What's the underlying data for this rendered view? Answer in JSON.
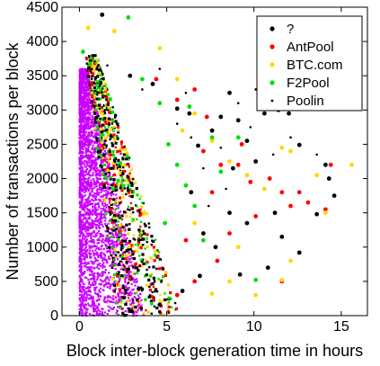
{
  "chart_data": {
    "type": "scatter",
    "title": "",
    "xlabel": "Block inter-block generation time in hours",
    "ylabel": "Number of transactions per block",
    "xlim": [
      -1,
      16.5
    ],
    "ylim": [
      0,
      4500
    ],
    "xticks": [
      0,
      5,
      10,
      15
    ],
    "yticks": [
      0,
      500,
      1000,
      1500,
      2000,
      2500,
      3000,
      3500,
      4000,
      4500
    ],
    "grid": false,
    "legend_position": "top-right",
    "series": [
      {
        "name": "?",
        "color": "#000000",
        "marker": "dot",
        "points": [
          [
            1.3,
            4390
          ],
          [
            4.2,
            3380
          ],
          [
            5.6,
            3020
          ],
          [
            6.3,
            2950
          ],
          [
            6.8,
            2480
          ],
          [
            7.6,
            2700
          ],
          [
            8.1,
            2900
          ],
          [
            8.6,
            3250
          ],
          [
            9.1,
            2850
          ],
          [
            9.6,
            2550
          ],
          [
            10.6,
            2950
          ],
          [
            11.4,
            3000
          ],
          [
            12.0,
            2950
          ],
          [
            12.6,
            2490
          ],
          [
            14.1,
            2200
          ],
          [
            14.6,
            1750
          ],
          [
            13.6,
            1480
          ],
          [
            11.6,
            1150
          ],
          [
            12.6,
            920
          ],
          [
            10.8,
            700
          ],
          [
            9.6,
            1350
          ],
          [
            8.6,
            1500
          ],
          [
            8.8,
            2150
          ],
          [
            7.1,
            1200
          ],
          [
            6.4,
            1800
          ],
          [
            6.9,
            580
          ],
          [
            4.6,
            160
          ],
          [
            3.4,
            390
          ],
          [
            5.9,
            360
          ],
          [
            7.8,
            1000
          ],
          [
            10.1,
            2250
          ],
          [
            14.3,
            2000
          ],
          [
            11.2,
            1500
          ],
          [
            9.2,
            600
          ],
          [
            2.9,
            3500
          ]
        ]
      },
      {
        "name": "AntPool",
        "color": "#ff0000",
        "marker": "dot",
        "points": [
          [
            4.4,
            3450
          ],
          [
            5.6,
            3150
          ],
          [
            6.6,
            3300
          ],
          [
            7.1,
            2400
          ],
          [
            7.6,
            1800
          ],
          [
            8.1,
            2200
          ],
          [
            9.3,
            2500
          ],
          [
            9.8,
            1950
          ],
          [
            10.9,
            2000
          ],
          [
            11.6,
            1800
          ],
          [
            12.1,
            1600
          ],
          [
            12.6,
            1800
          ],
          [
            13.1,
            1650
          ],
          [
            14.1,
            1550
          ],
          [
            14.4,
            2200
          ],
          [
            11.6,
            500
          ],
          [
            8.6,
            1200
          ],
          [
            7.9,
            800
          ],
          [
            6.6,
            500
          ],
          [
            5.6,
            300
          ],
          [
            9.1,
            2200
          ],
          [
            10.1,
            1450
          ],
          [
            7.3,
            2900
          ],
          [
            6.1,
            1100
          ]
        ]
      },
      {
        "name": "BTC.com",
        "color": "#ffd800",
        "marker": "dot",
        "points": [
          [
            0.5,
            4200
          ],
          [
            2.0,
            4150
          ],
          [
            4.6,
            3900
          ],
          [
            5.6,
            3450
          ],
          [
            6.6,
            2950
          ],
          [
            7.6,
            2550
          ],
          [
            8.6,
            2250
          ],
          [
            9.6,
            2050
          ],
          [
            10.6,
            1850
          ],
          [
            11.6,
            2450
          ],
          [
            12.1,
            2400
          ],
          [
            13.6,
            2050
          ],
          [
            15.6,
            2200
          ],
          [
            14.1,
            1500
          ],
          [
            12.1,
            800
          ],
          [
            11.6,
            520
          ],
          [
            9.1,
            1000
          ],
          [
            8.6,
            500
          ],
          [
            7.6,
            320
          ],
          [
            6.6,
            1350
          ],
          [
            5.9,
            2700
          ],
          [
            10.1,
            300
          ]
        ]
      },
      {
        "name": "F2Pool",
        "color": "#00e000",
        "marker": "dot",
        "points": [
          [
            2.8,
            4350
          ],
          [
            0.2,
            3850
          ],
          [
            3.6,
            3450
          ],
          [
            4.6,
            3100
          ],
          [
            5.1,
            2500
          ],
          [
            5.6,
            2200
          ],
          [
            6.1,
            1900
          ],
          [
            6.6,
            1600
          ],
          [
            7.1,
            1100
          ],
          [
            7.6,
            2600
          ],
          [
            8.1,
            2100
          ],
          [
            9.1,
            2600
          ],
          [
            10.1,
            520
          ],
          [
            6.3,
            3050
          ],
          [
            4.9,
            1350
          ]
        ]
      },
      {
        "name": "Poolin",
        "color": "#000000",
        "marker": "point",
        "points": [
          [
            1.6,
            3650
          ],
          [
            3.6,
            3300
          ],
          [
            4.6,
            3600
          ],
          [
            5.6,
            2800
          ],
          [
            6.1,
            3250
          ],
          [
            7.1,
            2150
          ],
          [
            8.1,
            2450
          ],
          [
            9.1,
            3100
          ],
          [
            10.1,
            3300
          ],
          [
            11.1,
            2350
          ],
          [
            12.1,
            2600
          ],
          [
            13.6,
            2350
          ],
          [
            10.6,
            3200
          ],
          [
            9.8,
            2750
          ],
          [
            8.4,
            1850
          ],
          [
            7.4,
            1600
          ],
          [
            6.4,
            2600
          ],
          [
            11.9,
            3050
          ]
        ]
      }
    ],
    "dense_cloud": {
      "color": "#cc00ff",
      "x_range": [
        0,
        3.5
      ],
      "y_range": [
        0,
        3600
      ]
    }
  }
}
